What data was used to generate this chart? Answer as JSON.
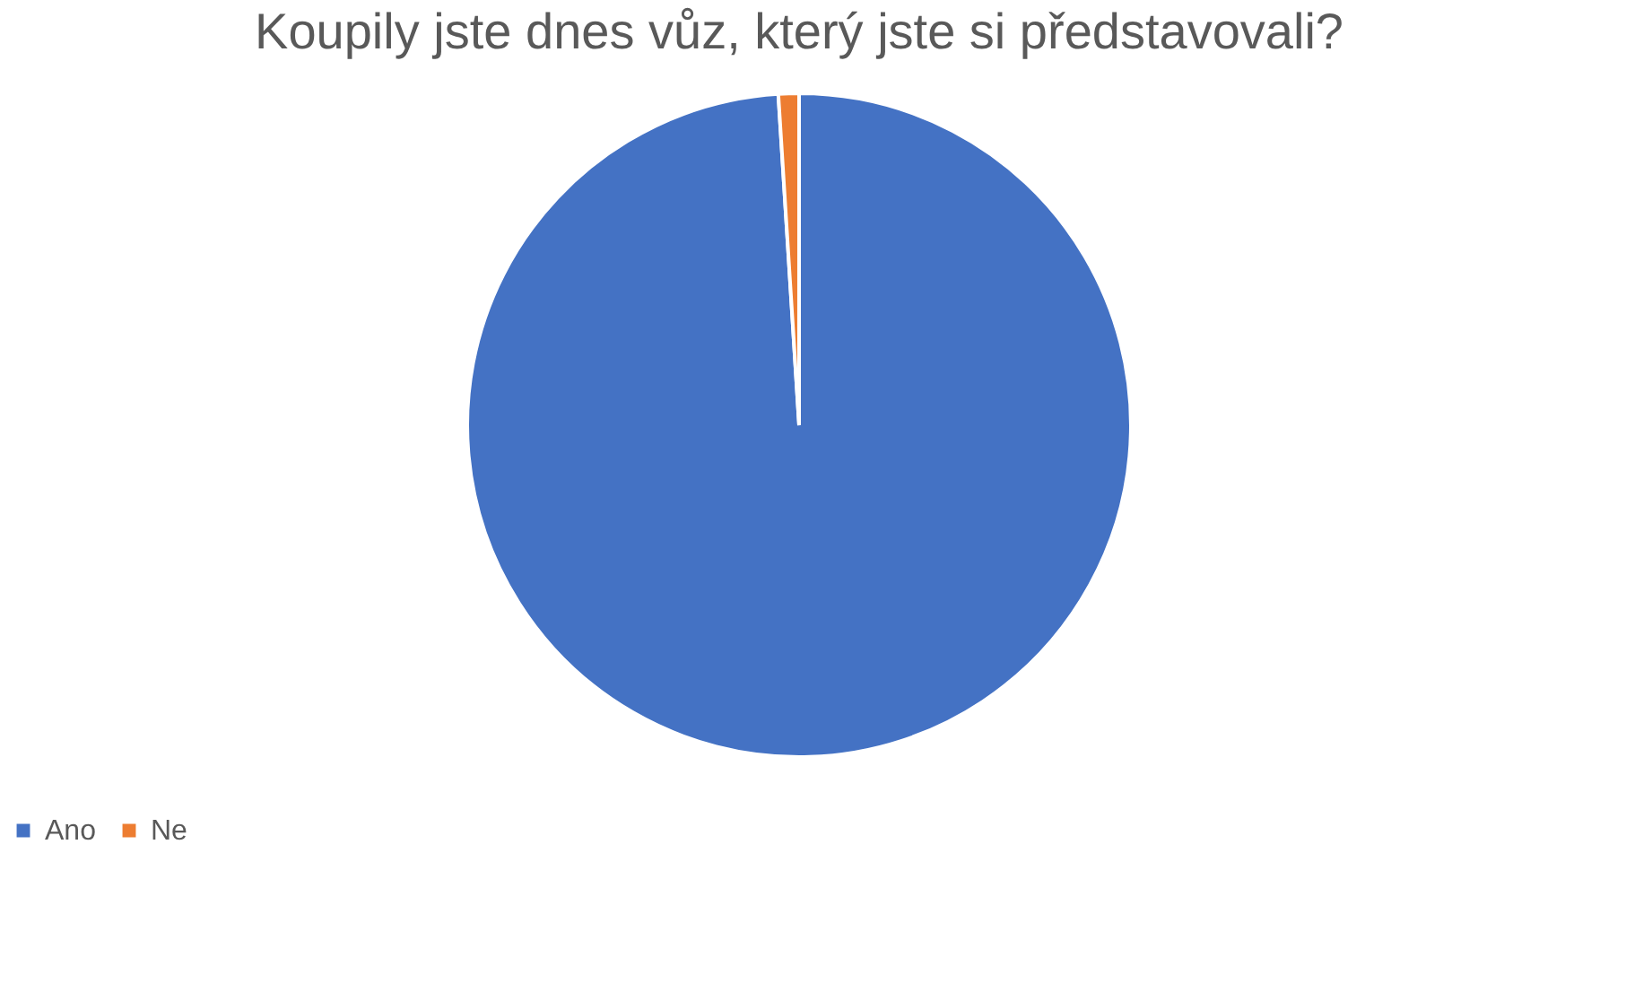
{
  "chart_data": {
    "type": "pie",
    "title": "Koupily jste dnes vůz, který jste si představovali?",
    "categories": [
      "Ano",
      "Ne"
    ],
    "values": [
      99,
      1
    ],
    "colors": [
      "#4472c4",
      "#ed7d31"
    ],
    "legend": "bottom"
  }
}
